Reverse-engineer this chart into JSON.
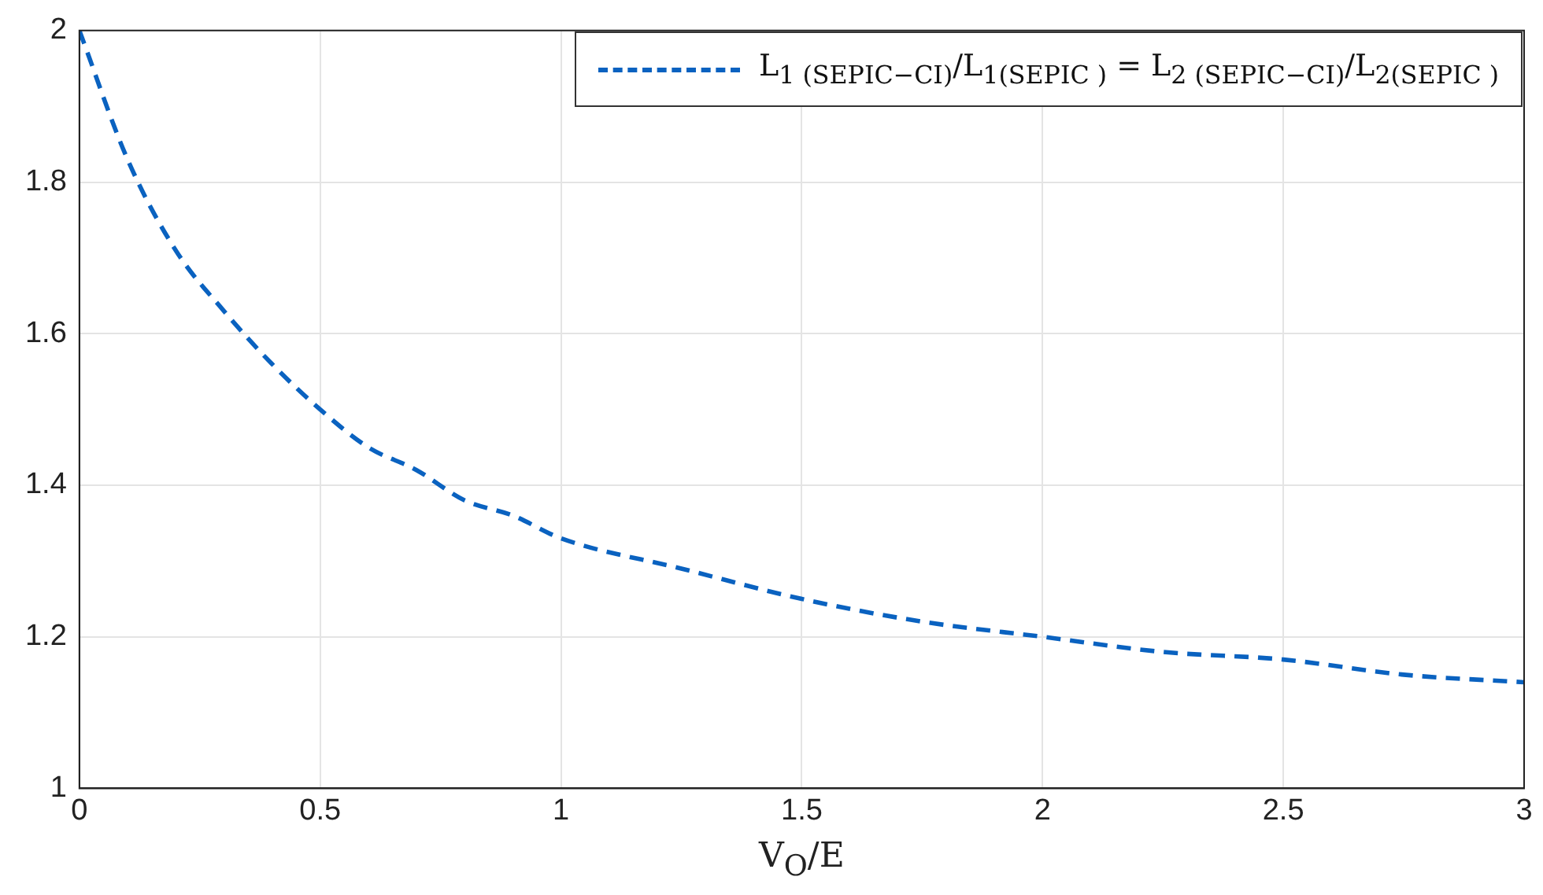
{
  "chart_data": {
    "type": "line",
    "xlabel": "V$_{O}$/E",
    "x": [
      0,
      0.1,
      0.2,
      0.3,
      0.4,
      0.5,
      0.6,
      0.7,
      0.8,
      0.9,
      1,
      1.25,
      1.5,
      1.75,
      2,
      2.25,
      2.5,
      2.75,
      3
    ],
    "series": [
      {
        "name": "L$_{1 (SEPIC−CI)}$/L$_{1(SEPIC )}$ = L$_{2 (SEPIC−CI)}$/L$_{2(SEPIC )}$",
        "color": "#0a62c0",
        "values": [
          2,
          1.83,
          1.71,
          1.63,
          1.56,
          1.5,
          1.45,
          1.42,
          1.38,
          1.36,
          1.33,
          1.29,
          1.25,
          1.22,
          1.2,
          1.18,
          1.17,
          1.15,
          1.14
        ]
      }
    ],
    "xlim": [
      0,
      3
    ],
    "xticks": [
      0,
      0.5,
      1,
      1.5,
      2,
      2.5,
      3
    ],
    "ylim": [
      1,
      2
    ],
    "yticks": [
      1,
      1.2,
      1.4,
      1.6,
      1.8,
      2
    ],
    "grid": true,
    "legend": "top right",
    "marker": "none",
    "line_style": "dashed"
  }
}
